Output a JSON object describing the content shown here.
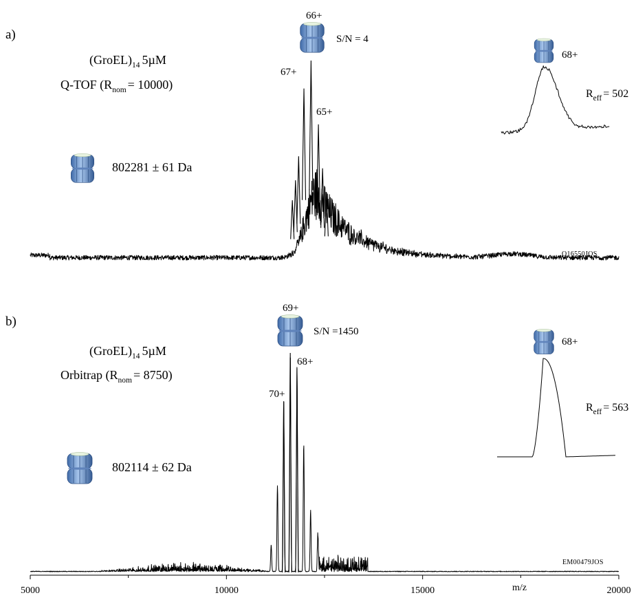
{
  "figure": {
    "x_axis": {
      "label": "m/z",
      "min": 5000,
      "max": 20000,
      "major_ticks": [
        5000,
        10000,
        15000,
        20000
      ],
      "tick_labels": [
        "5000",
        "10000",
        "15000",
        "20000"
      ],
      "minor_ticks": [
        7500,
        12500,
        17500
      ]
    }
  },
  "chart_data": [
    {
      "type": "line",
      "panel": "a)",
      "sample": "(GroEL)",
      "sample_subscript": "14",
      "concentration": "5µM",
      "instrument_prefix": "Q-TOF (R",
      "instrument_subscript": "nom",
      "instrument_suffix": "= 10000)",
      "mass_label": "802281 ± 61 Da",
      "signal_to_noise": "S/N = 4",
      "acquisition_code": "O16550JOS",
      "y_relative_max": 100,
      "charge_states": [
        {
          "label": "67+",
          "mz": 11975,
          "relative_intensity": 86
        },
        {
          "label": "66+",
          "mz": 12156,
          "relative_intensity": 100
        },
        {
          "label": "65+",
          "mz": 12344,
          "relative_intensity": 68
        }
      ],
      "minor_peaks_mz": [
        11680,
        11760,
        11840,
        12450,
        12550
      ],
      "baseline_relative_intensity": 2,
      "inset": {
        "charge_label": "68+",
        "reff_prefix": "R",
        "reff_subscript": "eff",
        "reff_value": "= 502"
      }
    },
    {
      "type": "line",
      "panel": "b)",
      "sample": "(GroEL)",
      "sample_subscript": "14",
      "concentration": "5µM",
      "instrument_prefix": "Orbitrap (R",
      "instrument_subscript": "nom",
      "instrument_suffix": "= 8750)",
      "mass_label": "802114 ± 62 Da",
      "signal_to_noise": "S/N =1450",
      "acquisition_code": "EM00479JOS",
      "y_relative_max": 100,
      "charge_states": [
        {
          "label": "70+",
          "mz": 11460,
          "relative_intensity": 78
        },
        {
          "label": "69+",
          "mz": 11627,
          "relative_intensity": 100
        },
        {
          "label": "68+",
          "mz": 11798,
          "relative_intensity": 93
        }
      ],
      "minor_peaks_mz": [
        11140,
        11300,
        11970,
        12145,
        12330
      ],
      "baseline_relative_intensity": 0.5,
      "inset": {
        "charge_label": "68+",
        "reff_prefix": "R",
        "reff_subscript": "eff",
        "reff_value": "= 563"
      }
    }
  ]
}
